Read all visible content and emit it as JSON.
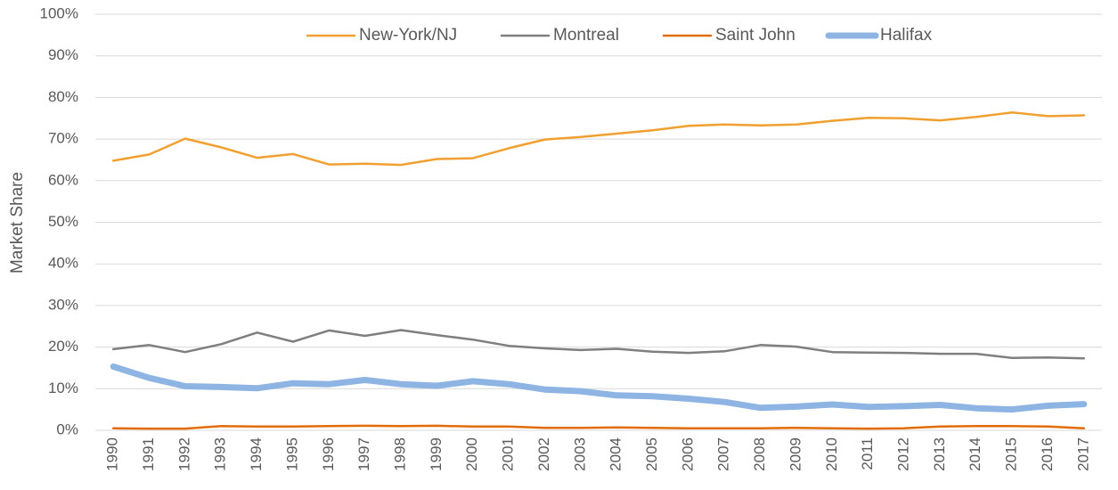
{
  "chart_data": {
    "type": "line",
    "y_label": "Market Share",
    "categories": [
      "1990",
      "1991",
      "1992",
      "1993",
      "1994",
      "1995",
      "1996",
      "1997",
      "1998",
      "1999",
      "2000",
      "2001",
      "2002",
      "2003",
      "2004",
      "2005",
      "2006",
      "2007",
      "2008",
      "2009",
      "2010",
      "2011",
      "2012",
      "2013",
      "2014",
      "2015",
      "2016",
      "2017"
    ],
    "series": [
      {
        "name": "New-York/NJ",
        "color": "#f0a030",
        "width": 2.5,
        "values": [
          64.8,
          66.3,
          70.1,
          68.0,
          65.5,
          66.4,
          63.9,
          64.1,
          63.8,
          65.2,
          65.4,
          67.8,
          69.9,
          70.5,
          71.3,
          72.1,
          73.2,
          73.5,
          73.3,
          73.5,
          74.4,
          75.1,
          75.0,
          74.5,
          75.3,
          76.4,
          75.5,
          75.7
        ]
      },
      {
        "name": "Montreal",
        "color": "#7f7f7f",
        "width": 2.5,
        "values": [
          19.5,
          20.5,
          18.8,
          20.7,
          23.5,
          21.3,
          24.0,
          22.7,
          24.1,
          22.9,
          21.8,
          20.3,
          19.7,
          19.3,
          19.6,
          18.9,
          18.6,
          19.0,
          20.5,
          20.1,
          18.8,
          18.7,
          18.6,
          18.4,
          18.4,
          17.4,
          17.5,
          17.3
        ]
      },
      {
        "name": "Saint John",
        "color": "#e36c09",
        "width": 2.5,
        "values": [
          0.5,
          0.4,
          0.4,
          1.0,
          0.9,
          0.9,
          1.0,
          1.1,
          1.0,
          1.1,
          0.9,
          0.9,
          0.6,
          0.6,
          0.7,
          0.6,
          0.5,
          0.5,
          0.5,
          0.6,
          0.5,
          0.4,
          0.5,
          0.9,
          1.0,
          1.0,
          0.9,
          0.5
        ]
      },
      {
        "name": "Halifax",
        "color": "#8db4e2",
        "width": 7,
        "values": [
          15.3,
          12.6,
          10.6,
          10.4,
          10.1,
          11.3,
          11.1,
          12.1,
          11.1,
          10.7,
          11.8,
          11.1,
          9.8,
          9.4,
          8.4,
          8.2,
          7.6,
          6.8,
          5.4,
          5.7,
          6.2,
          5.6,
          5.8,
          6.1,
          5.3,
          5.0,
          5.9,
          6.3
        ]
      }
    ],
    "ylim": [
      0,
      100
    ],
    "yticks": [
      {
        "value": 0,
        "label": "0%"
      },
      {
        "value": 10,
        "label": "10%"
      },
      {
        "value": 20,
        "label": "20%"
      },
      {
        "value": 30,
        "label": "30%"
      },
      {
        "value": 40,
        "label": "40%"
      },
      {
        "value": 50,
        "label": "50%"
      },
      {
        "value": 60,
        "label": "60%"
      },
      {
        "value": 70,
        "label": "70%"
      },
      {
        "value": 80,
        "label": "80%"
      },
      {
        "value": 90,
        "label": "90%"
      },
      {
        "value": 100,
        "label": "100%"
      }
    ],
    "grid": true,
    "legend": "top"
  }
}
